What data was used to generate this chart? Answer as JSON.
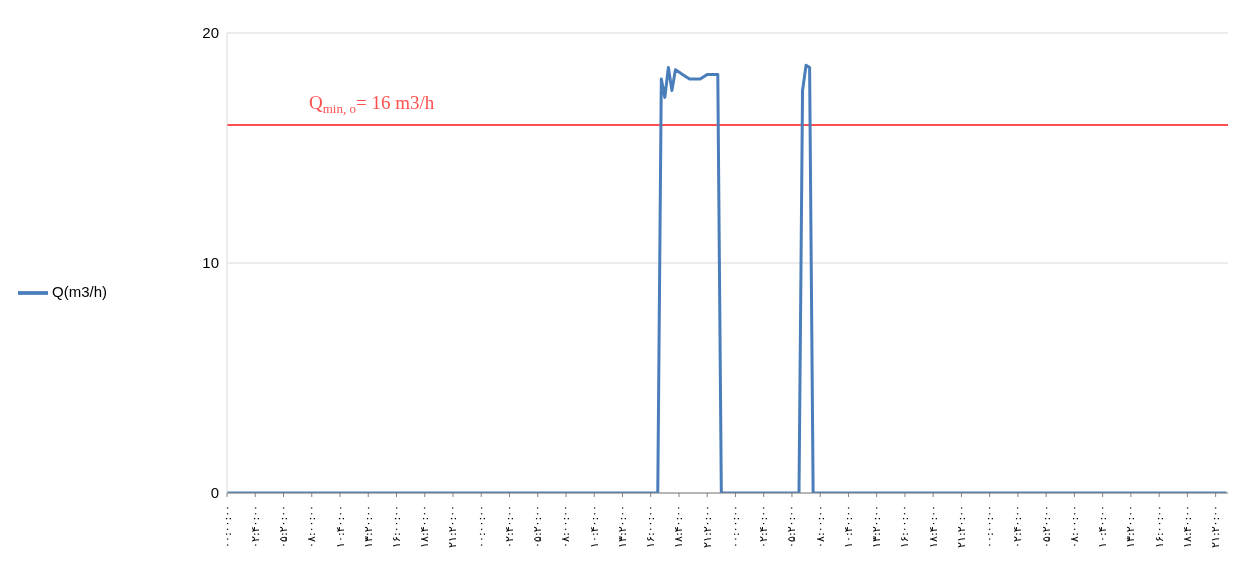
{
  "chart_data": {
    "type": "line",
    "categories": [
      "۰۰:۰۰:۰۰",
      null,
      null,
      null,
      null,
      null,
      null,
      null,
      "۰۲:۴۰:۰۰",
      null,
      null,
      null,
      null,
      null,
      null,
      null,
      "۰۵:۲۰:۰۰",
      null,
      null,
      null,
      null,
      null,
      null,
      null,
      "۰۸:۰۰:۰۰",
      null,
      null,
      null,
      null,
      null,
      null,
      null,
      "۱۰:۴۰:۰۰",
      null,
      null,
      null,
      null,
      null,
      null,
      null,
      "۱۳:۲۰:۰۰",
      null,
      null,
      null,
      null,
      null,
      null,
      null,
      "۱۶:۰۰:۰۰",
      null,
      null,
      null,
      null,
      null,
      null,
      null,
      "۱۸:۴۰:۰۰",
      null,
      null,
      null,
      null,
      null,
      null,
      null,
      "۲۱:۲۰:۰۰",
      null,
      null,
      null,
      null,
      null,
      null,
      null,
      "۰۰:۰۰:۰۰",
      null,
      null,
      null,
      null,
      null,
      null,
      null,
      "۰۲:۴۰:۰۰",
      null,
      null,
      null,
      null,
      null,
      null,
      null,
      "۰۵:۲۰:۰۰",
      null,
      null,
      null,
      null,
      null,
      null,
      null,
      "۰۸:۰۰:۰۰",
      null,
      null,
      null,
      null,
      null,
      null,
      null,
      "۱۰:۴۰:۰۰",
      null,
      null,
      null,
      null,
      null,
      null,
      null,
      "۱۳:۲۰:۰۰",
      null,
      null,
      null,
      null,
      null,
      null,
      null,
      "۱۶:۰۰:۰۰",
      null,
      null,
      null,
      null,
      null,
      null,
      null,
      "۱۸:۴۰:۰۰",
      null,
      null,
      null,
      null,
      null,
      null,
      null,
      "۲۱:۲۰:۰۰",
      null,
      null,
      null,
      null,
      null,
      null,
      null,
      "۰۰:۰۰:۰۰",
      null,
      null,
      null,
      null,
      null,
      null,
      null,
      "۰۲:۴۰:۰۰",
      null,
      null,
      null,
      null,
      null,
      null,
      null,
      "۰۵:۲۰:۰۰",
      null,
      null,
      null,
      null,
      null,
      null,
      null,
      "۰۸:۰۰:۰۰",
      null,
      null,
      null,
      null,
      null,
      null,
      null,
      "۱۰:۴۰:۰۰",
      null,
      null,
      null,
      null,
      null,
      null,
      null,
      "۱۳:۲۰:۰۰",
      null,
      null,
      null,
      null,
      null,
      null,
      null,
      "۱۶:۰۰:۰۰",
      null,
      null,
      null,
      null,
      null,
      null,
      null,
      "۱۸:۴۰:۰۰",
      null,
      null,
      null,
      null,
      null,
      null,
      null,
      "۲۱:۲۰:۰۰",
      null,
      null,
      null,
      null,
      null,
      null,
      null,
      "۰۰:۰۰:۰۰",
      null,
      null,
      null,
      null,
      null,
      null,
      null,
      "۰۲:۴۰:۰۰",
      null,
      null,
      null,
      null,
      null,
      null,
      null,
      "۰۵:۲۰:۰۰",
      null,
      null,
      null,
      null,
      null,
      null,
      null,
      "۰۸:۰۰:۰۰",
      null,
      null,
      null,
      null,
      null,
      null,
      null,
      "۱۰:۴۰:۰۰",
      null,
      null,
      null,
      null,
      null,
      null,
      null,
      "۱۳:۲۰:۰۰",
      null,
      null,
      null,
      null,
      null,
      null,
      null,
      "۱۶:۰۰:۰۰",
      null,
      null,
      null,
      null,
      null,
      null,
      null,
      "۱۸:۴۰:۰۰",
      null,
      null,
      null,
      null,
      null,
      null,
      null,
      "۲۱:۲۰:۰۰",
      null,
      null,
      null
    ],
    "series": [
      {
        "name": "Q(m3/h)",
        "color": "#4a7ebb",
        "values": [
          0,
          0,
          0,
          0,
          0,
          0,
          0,
          0,
          0,
          0,
          0,
          0,
          0,
          0,
          0,
          0,
          0,
          0,
          0,
          0,
          0,
          0,
          0,
          0,
          0,
          0,
          0,
          0,
          0,
          0,
          0,
          0,
          0,
          0,
          0,
          0,
          0,
          0,
          0,
          0,
          0,
          0,
          0,
          0,
          0,
          0,
          0,
          0,
          0,
          0,
          0,
          0,
          0,
          0,
          0,
          0,
          0,
          0,
          0,
          0,
          0,
          0,
          0,
          0,
          0,
          0,
          0,
          0,
          0,
          0,
          0,
          0,
          0,
          0,
          0,
          0,
          0,
          0,
          0,
          0,
          0,
          0,
          0,
          0,
          0,
          0,
          0,
          0,
          0,
          0,
          0,
          0,
          0,
          0,
          0,
          0,
          0,
          0,
          0,
          0,
          0,
          0,
          0,
          0,
          0,
          0,
          0,
          0,
          0,
          0,
          0,
          0,
          0,
          0,
          0,
          0,
          0,
          0,
          0,
          0,
          0,
          0,
          0,
          18.0,
          17.2,
          18.5,
          17.5,
          18.4,
          18.3,
          18.2,
          18.1,
          18.0,
          18.0,
          18.0,
          18.0,
          18.1,
          18.2,
          18.2,
          18.2,
          18.2,
          0,
          0,
          0,
          0,
          0,
          0,
          0,
          0,
          0,
          0,
          0,
          0,
          0,
          0,
          0,
          0,
          0,
          0,
          0,
          0,
          0,
          0,
          0,
          17.5,
          18.6,
          18.5,
          0,
          0,
          0,
          0,
          0,
          0,
          0,
          0,
          0,
          0,
          0,
          0,
          0,
          0,
          0,
          0,
          0,
          0,
          0,
          0,
          0,
          0,
          0,
          0,
          0,
          0,
          0,
          0,
          0,
          0,
          0,
          0,
          0,
          0,
          0,
          0,
          0,
          0,
          0,
          0,
          0,
          0,
          0,
          0,
          0,
          0,
          0,
          0,
          0,
          0,
          0,
          0,
          0,
          0,
          0,
          0,
          0,
          0,
          0,
          0,
          0,
          0,
          0,
          0,
          0,
          0,
          0,
          0,
          0,
          0,
          0,
          0,
          0,
          0,
          0,
          0,
          0,
          0,
          0,
          0,
          0,
          0,
          0,
          0,
          0,
          0,
          0,
          0,
          0,
          0,
          0,
          0,
          0,
          0,
          0,
          0,
          0,
          0,
          0,
          0,
          0,
          0,
          0,
          0,
          0,
          0,
          0,
          0,
          0,
          0,
          0,
          0,
          0,
          0,
          0,
          0,
          0,
          0
        ]
      }
    ],
    "ylim": [
      0,
      20
    ],
    "yticks": [
      0,
      10,
      20
    ],
    "grid": "y",
    "legend": "left",
    "marker": "none",
    "line_style": "solid",
    "ref_lines": [
      {
        "axis": "y",
        "value": 16,
        "label": "Q$_{min, o}$= 16 m3/h",
        "color": "#ff5050"
      }
    ]
  }
}
